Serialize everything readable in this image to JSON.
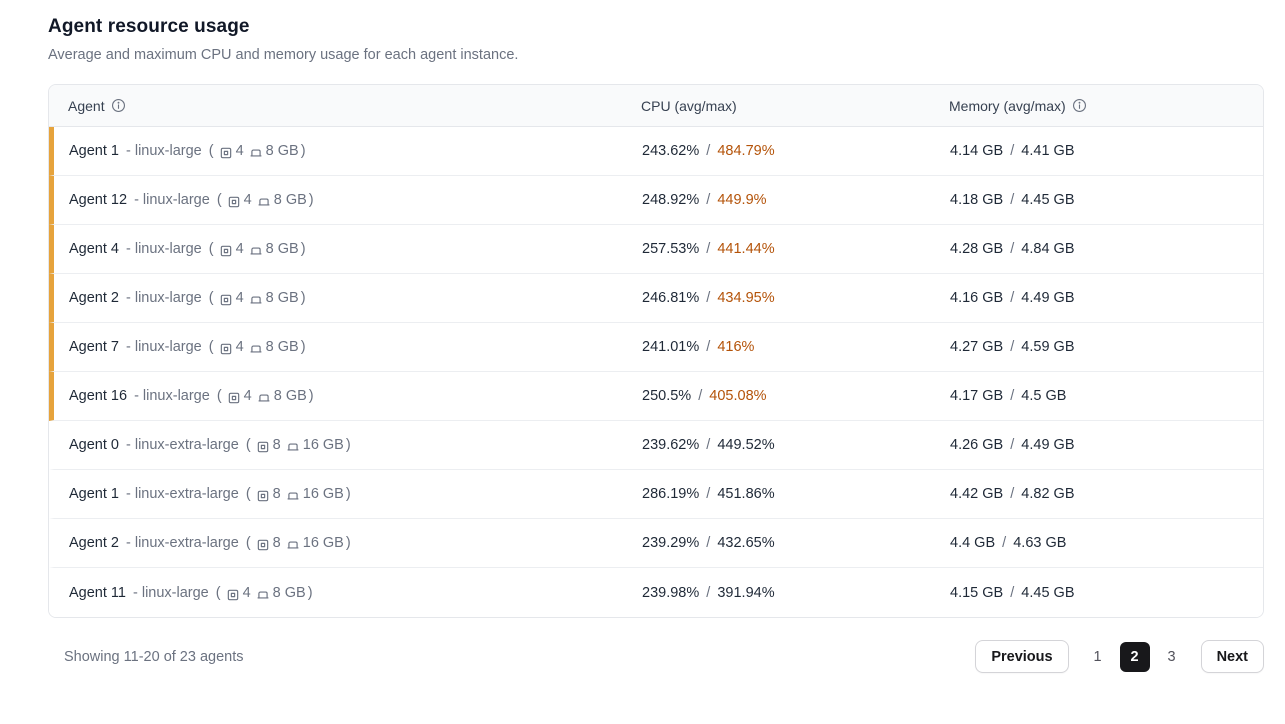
{
  "page": {
    "title": "Agent resource usage",
    "subtitle": "Average and maximum CPU and memory usage for each agent instance."
  },
  "table": {
    "columns": {
      "agent": "Agent",
      "cpu": "CPU (avg/max)",
      "memory": "Memory (avg/max)"
    },
    "separator": "/",
    "paren_open": "(",
    "paren_close": ")",
    "rows": [
      {
        "name": "Agent 1",
        "instance": "- linux-large",
        "cpus": "4",
        "memory_size": "8 GB",
        "cpu_avg": "243.62%",
        "cpu_max": "484.79%",
        "cpu_alert": true,
        "mem_avg": "4.14 GB",
        "mem_max": "4.41 GB"
      },
      {
        "name": "Agent 12",
        "instance": "- linux-large",
        "cpus": "4",
        "memory_size": "8 GB",
        "cpu_avg": "248.92%",
        "cpu_max": "449.9%",
        "cpu_alert": true,
        "mem_avg": "4.18 GB",
        "mem_max": "4.45 GB"
      },
      {
        "name": "Agent 4",
        "instance": "- linux-large",
        "cpus": "4",
        "memory_size": "8 GB",
        "cpu_avg": "257.53%",
        "cpu_max": "441.44%",
        "cpu_alert": true,
        "mem_avg": "4.28 GB",
        "mem_max": "4.84 GB"
      },
      {
        "name": "Agent 2",
        "instance": "- linux-large",
        "cpus": "4",
        "memory_size": "8 GB",
        "cpu_avg": "246.81%",
        "cpu_max": "434.95%",
        "cpu_alert": true,
        "mem_avg": "4.16 GB",
        "mem_max": "4.49 GB"
      },
      {
        "name": "Agent 7",
        "instance": "- linux-large",
        "cpus": "4",
        "memory_size": "8 GB",
        "cpu_avg": "241.01%",
        "cpu_max": "416%",
        "cpu_alert": true,
        "mem_avg": "4.27 GB",
        "mem_max": "4.59 GB"
      },
      {
        "name": "Agent 16",
        "instance": "- linux-large",
        "cpus": "4",
        "memory_size": "8 GB",
        "cpu_avg": "250.5%",
        "cpu_max": "405.08%",
        "cpu_alert": true,
        "mem_avg": "4.17 GB",
        "mem_max": "4.5 GB"
      },
      {
        "name": "Agent 0",
        "instance": "- linux-extra-large",
        "cpus": "8",
        "memory_size": "16 GB",
        "cpu_avg": "239.62%",
        "cpu_max": "449.52%",
        "cpu_alert": false,
        "mem_avg": "4.26 GB",
        "mem_max": "4.49 GB"
      },
      {
        "name": "Agent 1",
        "instance": "- linux-extra-large",
        "cpus": "8",
        "memory_size": "16 GB",
        "cpu_avg": "286.19%",
        "cpu_max": "451.86%",
        "cpu_alert": false,
        "mem_avg": "4.42 GB",
        "mem_max": "4.82 GB"
      },
      {
        "name": "Agent 2",
        "instance": "- linux-extra-large",
        "cpus": "8",
        "memory_size": "16 GB",
        "cpu_avg": "239.29%",
        "cpu_max": "432.65%",
        "cpu_alert": false,
        "mem_avg": "4.4 GB",
        "mem_max": "4.63 GB"
      },
      {
        "name": "Agent 11",
        "instance": "- linux-large",
        "cpus": "4",
        "memory_size": "8 GB",
        "cpu_avg": "239.98%",
        "cpu_max": "391.94%",
        "cpu_alert": false,
        "mem_avg": "4.15 GB",
        "mem_max": "4.45 GB"
      }
    ]
  },
  "footer": {
    "summary": "Showing 11-20 of 23 agents"
  },
  "pagination": {
    "previous_label": "Previous",
    "next_label": "Next",
    "pages": [
      "1",
      "2",
      "3"
    ],
    "current": "2"
  },
  "colors": {
    "alert_bar": "#e6a33c",
    "alert_text": "#b45309",
    "active_page_bg": "#18181b"
  }
}
